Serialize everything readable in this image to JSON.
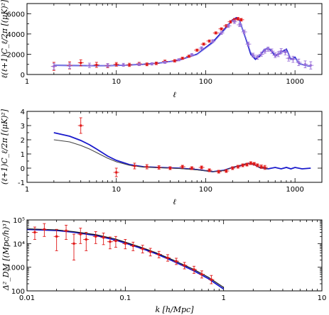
{
  "colors": {
    "blue": "#1a1acc",
    "lightblue": "#8a84e6",
    "red": "#e01818",
    "gray": "#444444",
    "purple": "#9a6fd8"
  },
  "chart_data": [
    {
      "type": "line",
      "xscale": "log",
      "xlim": [
        1,
        2000
      ],
      "ylim": [
        0,
        7000
      ],
      "yticks": [
        0,
        2000,
        4000,
        6000
      ],
      "xticks": [
        1,
        10,
        100,
        1000
      ],
      "xtick_labels": [
        "1",
        "10",
        "100",
        "1000"
      ],
      "ytick_labels": [
        "0",
        "2000",
        "4000",
        "6000"
      ],
      "xlabel": "ℓ",
      "ylabel": "ℓ(ℓ+1)C_ℓ/2π  [(μK)²]",
      "series": [
        {
          "kind": "model-blue",
          "x": [
            2,
            3,
            5,
            8,
            12,
            20,
            30,
            50,
            80,
            120,
            160,
            200,
            220,
            240,
            280,
            320,
            360,
            400,
            450,
            500,
            550,
            600,
            700,
            800,
            900,
            1000,
            1100,
            1200,
            1300,
            1500
          ],
          "y": [
            900,
            880,
            860,
            870,
            910,
            1000,
            1120,
            1400,
            2000,
            3200,
            4400,
            5400,
            5600,
            5300,
            3600,
            2000,
            1500,
            1800,
            2400,
            2600,
            2300,
            1800,
            2200,
            2500,
            1500,
            1700,
            1100,
            1000,
            900,
            800
          ]
        },
        {
          "kind": "model-light",
          "x": [
            2,
            3,
            5,
            8,
            12,
            20,
            30,
            50,
            80,
            120,
            160,
            200,
            220,
            240,
            280,
            320,
            360,
            400,
            450,
            500,
            550,
            600,
            700,
            800,
            900,
            1000,
            1100,
            1200,
            1300,
            1500
          ],
          "y": [
            880,
            860,
            850,
            860,
            900,
            990,
            1100,
            1380,
            1950,
            3100,
            4300,
            5300,
            5500,
            5250,
            3700,
            2200,
            1700,
            1900,
            2500,
            2650,
            2400,
            1950,
            2150,
            2350,
            1600,
            1600,
            1150,
            1000,
            900,
            800
          ]
        },
        {
          "kind": "data-red",
          "x": [
            2,
            3,
            4,
            6,
            8,
            10,
            14,
            18,
            22,
            28,
            35,
            45,
            55,
            65,
            80,
            95,
            110,
            130,
            150,
            170,
            190,
            210,
            230,
            250
          ],
          "y": [
            800,
            900,
            1150,
            950,
            870,
            1000,
            950,
            1050,
            1000,
            1100,
            1300,
            1350,
            1600,
            1800,
            2400,
            3000,
            3300,
            4100,
            4500,
            4800,
            5200,
            5400,
            5500,
            5400
          ],
          "err": [
            400,
            350,
            300,
            250,
            200,
            180,
            160,
            150,
            140,
            130,
            120,
            120,
            110,
            110,
            110,
            110,
            110,
            110,
            110,
            120,
            120,
            130,
            130,
            130
          ]
        },
        {
          "kind": "data-purple",
          "x": [
            2,
            3,
            5,
            8,
            12,
            18,
            25,
            35,
            50,
            70,
            90,
            120,
            150,
            180,
            210,
            240,
            270,
            300,
            340,
            380,
            420,
            460,
            500,
            550,
            600,
            650,
            700,
            780,
            850,
            950,
            1100,
            1300,
            1500
          ],
          "y": [
            800,
            850,
            900,
            900,
            950,
            1000,
            1050,
            1200,
            1450,
            1950,
            2600,
            3300,
            4100,
            4800,
            5200,
            4900,
            4200,
            3000,
            1900,
            1700,
            2000,
            2300,
            2500,
            2300,
            1900,
            2000,
            2300,
            2200,
            1600,
            1500,
            1200,
            1000,
            900
          ],
          "err": [
            300,
            260,
            220,
            180,
            150,
            130,
            120,
            110,
            110,
            120,
            130,
            140,
            150,
            160,
            170,
            180,
            190,
            200,
            200,
            200,
            200,
            200,
            210,
            220,
            230,
            240,
            250,
            260,
            280,
            300,
            320,
            340,
            360
          ]
        }
      ]
    },
    {
      "type": "line",
      "xscale": "log",
      "xlim": [
        1,
        2000
      ],
      "ylim": [
        -1,
        4
      ],
      "yticks": [
        -1,
        0,
        1,
        2,
        3,
        4
      ],
      "xticks": [
        1,
        10,
        100,
        1000
      ],
      "xtick_labels": [
        "1",
        "10",
        "100",
        "1000"
      ],
      "ytick_labels": [
        "-1",
        "0",
        "1",
        "2",
        "3",
        "4"
      ],
      "xlabel": "ℓ",
      "ylabel": "(ℓ+1)C_ℓ/2π  [(μK)²]",
      "series": [
        {
          "kind": "model-blue",
          "x": [
            2,
            3,
            4,
            5,
            6,
            8,
            10,
            14,
            20,
            30,
            50,
            80,
            120,
            160,
            200,
            250,
            300,
            350,
            400,
            500,
            600,
            700,
            800,
            900,
            1000,
            1200,
            1500
          ],
          "y": [
            2.5,
            2.25,
            1.95,
            1.65,
            1.35,
            0.85,
            0.55,
            0.25,
            0.1,
            0.05,
            0.0,
            -0.1,
            -0.25,
            -0.15,
            0.05,
            0.2,
            0.35,
            0.25,
            0.05,
            -0.05,
            0.05,
            -0.05,
            0.05,
            -0.05,
            0.05,
            -0.05,
            0.0
          ]
        },
        {
          "kind": "model-gray",
          "x": [
            2,
            3,
            4,
            5,
            6,
            8,
            10,
            14,
            20,
            30,
            50,
            80,
            120,
            160,
            200,
            250,
            300,
            350,
            400,
            500
          ],
          "y": [
            2.0,
            1.85,
            1.6,
            1.35,
            1.1,
            0.7,
            0.45,
            0.2,
            0.07,
            0.03,
            -0.02,
            -0.12,
            -0.25,
            -0.17,
            0.05,
            0.22,
            0.35,
            0.25,
            0.05,
            -0.05
          ]
        },
        {
          "kind": "data-red",
          "x": [
            4,
            10,
            16,
            22,
            30,
            40,
            55,
            70,
            90,
            110,
            140,
            170,
            200,
            230,
            260,
            290,
            320,
            350,
            380,
            420,
            460
          ],
          "y": [
            3.0,
            -0.3,
            0.15,
            0.1,
            0.05,
            0.0,
            0.1,
            0.0,
            0.05,
            -0.15,
            -0.25,
            -0.2,
            0.0,
            0.1,
            0.2,
            0.25,
            0.35,
            0.3,
            0.2,
            0.1,
            0.05
          ],
          "err": [
            0.55,
            0.3,
            0.2,
            0.15,
            0.12,
            0.1,
            0.1,
            0.1,
            0.1,
            0.1,
            0.1,
            0.1,
            0.1,
            0.1,
            0.1,
            0.1,
            0.1,
            0.1,
            0.1,
            0.12,
            0.14
          ]
        }
      ]
    },
    {
      "type": "line",
      "xscale": "log",
      "yscale": "log",
      "xlim": [
        0.01,
        10
      ],
      "ylim": [
        100,
        100000
      ],
      "xticks": [
        0.01,
        0.1,
        1,
        10
      ],
      "xtick_labels": [
        "0.01",
        "0.1",
        "1",
        "10"
      ],
      "yticks": [
        100,
        1000,
        10000,
        100000
      ],
      "ytick_labels": [
        "100",
        "1000",
        "10⁴",
        "10⁵"
      ],
      "xlabel": "k [h/Mpc]",
      "ylabel": "Δ²_DM [(Mpc/h)³]",
      "series": [
        {
          "kind": "model-blue",
          "x": [
            0.01,
            0.02,
            0.03,
            0.05,
            0.08,
            0.1,
            0.15,
            0.2,
            0.3,
            0.5,
            0.7,
            1.0
          ],
          "y": [
            40000,
            36000,
            30000,
            22000,
            14000,
            10500,
            6000,
            3900,
            1900,
            700,
            330,
            120
          ]
        },
        {
          "kind": "model-black",
          "x": [
            0.01,
            0.02,
            0.03,
            0.05,
            0.08,
            0.1,
            0.15,
            0.2,
            0.3,
            0.5,
            0.7,
            1.0
          ],
          "y": [
            42000,
            38000,
            32000,
            24000,
            15500,
            11500,
            6600,
            4300,
            2100,
            800,
            380,
            140
          ]
        },
        {
          "kind": "data-red",
          "x": [
            0.012,
            0.015,
            0.02,
            0.025,
            0.03,
            0.035,
            0.04,
            0.05,
            0.06,
            0.07,
            0.08,
            0.1,
            0.12,
            0.15,
            0.18,
            0.22,
            0.27,
            0.33,
            0.4,
            0.5,
            0.6,
            0.75
          ],
          "y": [
            30000,
            40000,
            20000,
            35000,
            10000,
            25000,
            15000,
            20000,
            18000,
            12000,
            13000,
            10000,
            8000,
            6000,
            4500,
            3500,
            2500,
            1800,
            1200,
            800,
            500,
            300
          ],
          "err_lo": [
            15000,
            20000,
            15000,
            20000,
            8000,
            15000,
            10000,
            10000,
            9000,
            6000,
            6000,
            4000,
            3000,
            2000,
            1500,
            1000,
            700,
            500,
            350,
            250,
            150,
            100
          ],
          "err_hi": [
            20000,
            30000,
            20000,
            25000,
            15000,
            20000,
            15000,
            12000,
            10000,
            7000,
            7000,
            5000,
            3500,
            2500,
            1800,
            1200,
            900,
            600,
            400,
            300,
            200,
            150
          ]
        }
      ]
    }
  ]
}
